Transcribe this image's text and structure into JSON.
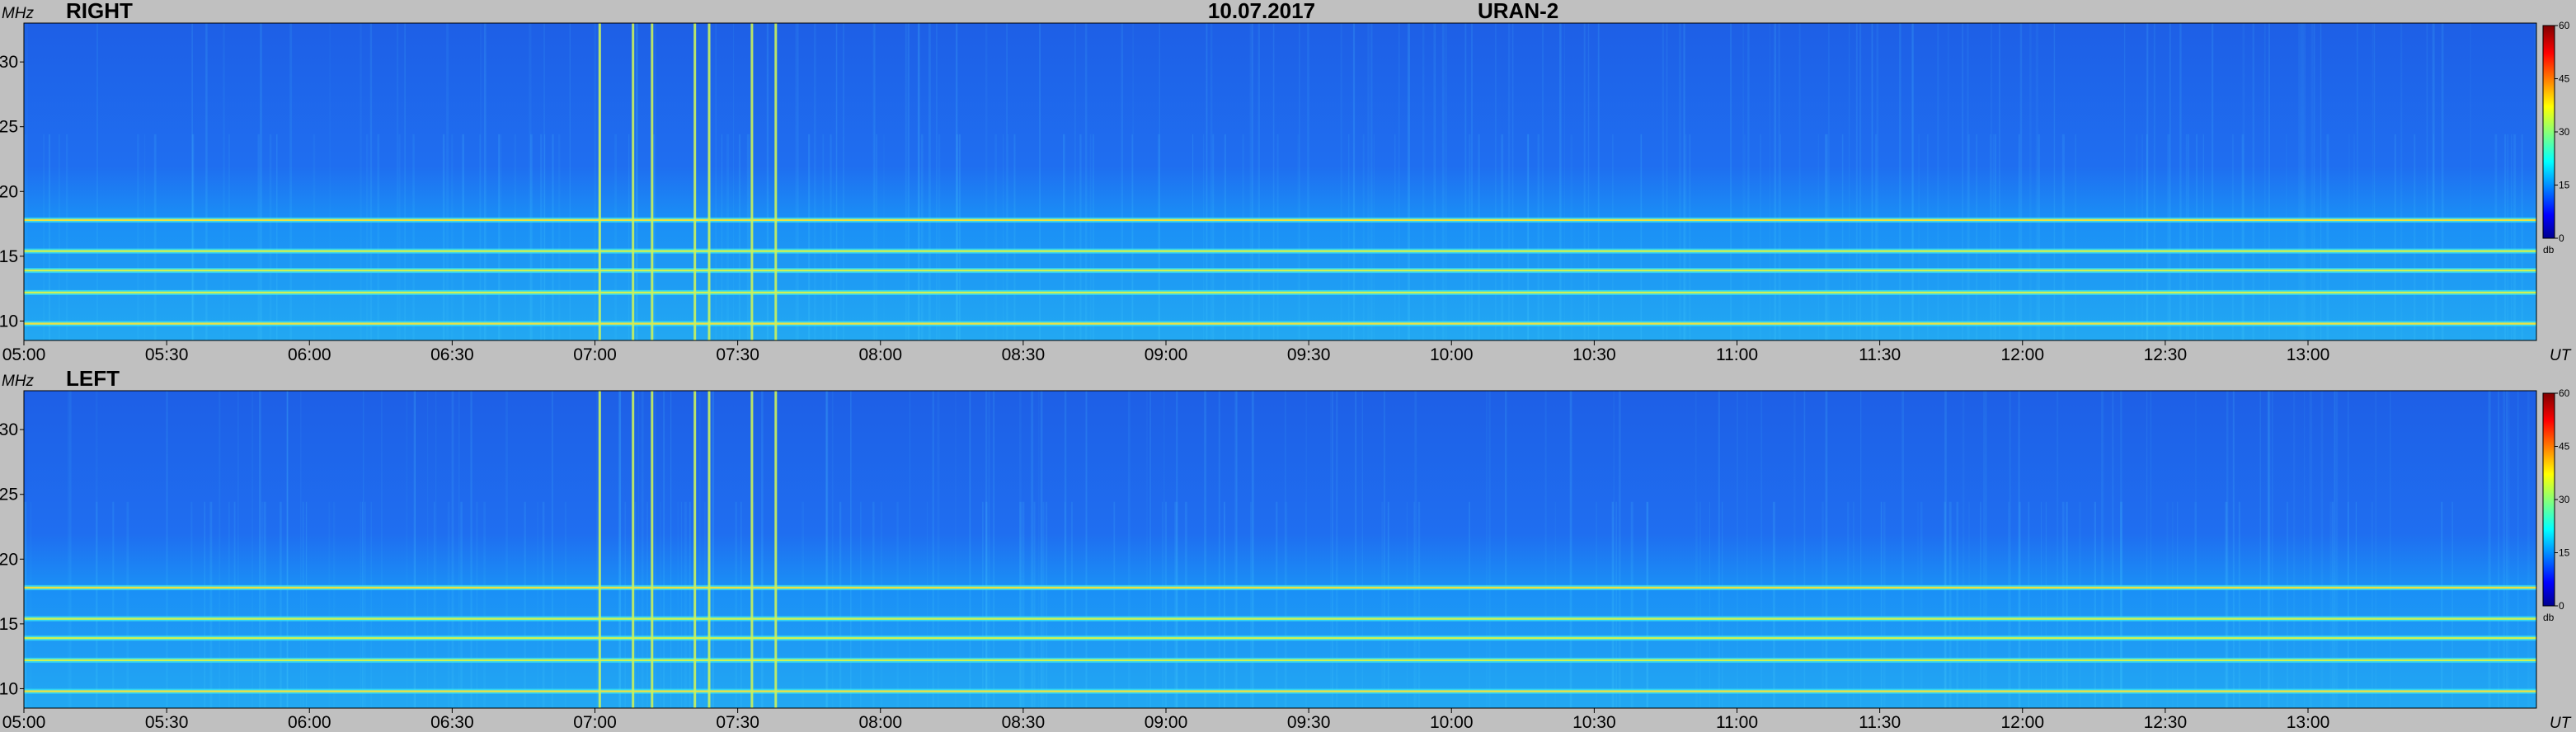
{
  "header": {
    "date": "10.07.2017",
    "instrument": "URAN-2"
  },
  "chart_data": [
    {
      "type": "heatmap",
      "panel_label": "RIGHT",
      "y_unit": "MHz",
      "x_unit": "UT",
      "x_ticks": [
        "05:00",
        "05:30",
        "06:00",
        "06:30",
        "07:00",
        "07:30",
        "08:00",
        "08:30",
        "09:00",
        "09:30",
        "10:00",
        "10:30",
        "11:00",
        "11:30",
        "12:00",
        "12:30",
        "13:00"
      ],
      "xlim": [
        "05:00",
        "13:48"
      ],
      "y_ticks": [
        10,
        15,
        20,
        25,
        30
      ],
      "ylim": [
        8.5,
        33
      ],
      "colorbar": {
        "unit": "db",
        "ticks": [
          0,
          15,
          30,
          45,
          60
        ],
        "range": [
          0,
          60
        ]
      },
      "bright_bands_mhz": [
        9.8,
        12.2,
        13.9,
        15.4,
        17.8
      ],
      "bright_bursts_ut": [
        "07:01",
        "07:08",
        "07:12",
        "07:21",
        "07:24",
        "07:33",
        "07:38"
      ]
    },
    {
      "type": "heatmap",
      "panel_label": "LEFT",
      "y_unit": "MHz",
      "x_unit": "UT",
      "x_ticks": [
        "05:00",
        "05:30",
        "06:00",
        "06:30",
        "07:00",
        "07:30",
        "08:00",
        "08:30",
        "09:00",
        "09:30",
        "10:00",
        "10:30",
        "11:00",
        "11:30",
        "12:00",
        "12:30",
        "13:00"
      ],
      "xlim": [
        "05:00",
        "13:48"
      ],
      "y_ticks": [
        10,
        15,
        20,
        25,
        30
      ],
      "ylim": [
        8.5,
        33
      ],
      "colorbar": {
        "unit": "db",
        "ticks": [
          0,
          15,
          30,
          45,
          60
        ],
        "range": [
          0,
          60
        ]
      },
      "bright_bands_mhz": [
        9.8,
        12.2,
        13.9,
        15.4,
        17.8
      ],
      "bright_bursts_ut": [
        "07:01",
        "07:08",
        "07:12",
        "07:21",
        "07:24",
        "07:33",
        "07:38"
      ]
    }
  ]
}
